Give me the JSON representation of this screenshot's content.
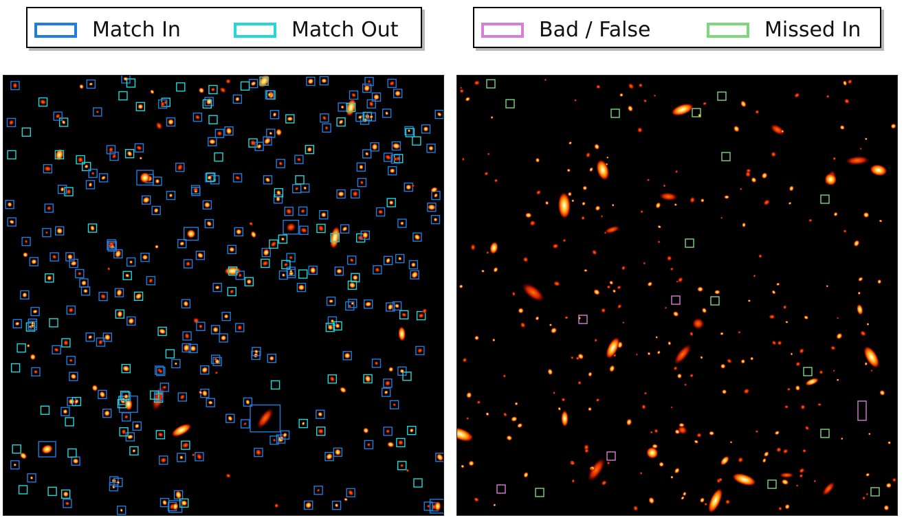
{
  "legends": {
    "left": [
      {
        "label": "Match In",
        "color": "#1f7ddc"
      },
      {
        "label": "Match Out",
        "color": "#22d8d8"
      }
    ],
    "right": [
      {
        "label": "Bad / False",
        "color": "#d67fd6"
      },
      {
        "label": "Missed In",
        "color": "#7fd67f"
      }
    ]
  },
  "panels": {
    "background": "#000000",
    "source_colors": [
      "#7a0000",
      "#d12000",
      "#ff7a00",
      "#ffd040",
      "#ffffff"
    ]
  }
}
